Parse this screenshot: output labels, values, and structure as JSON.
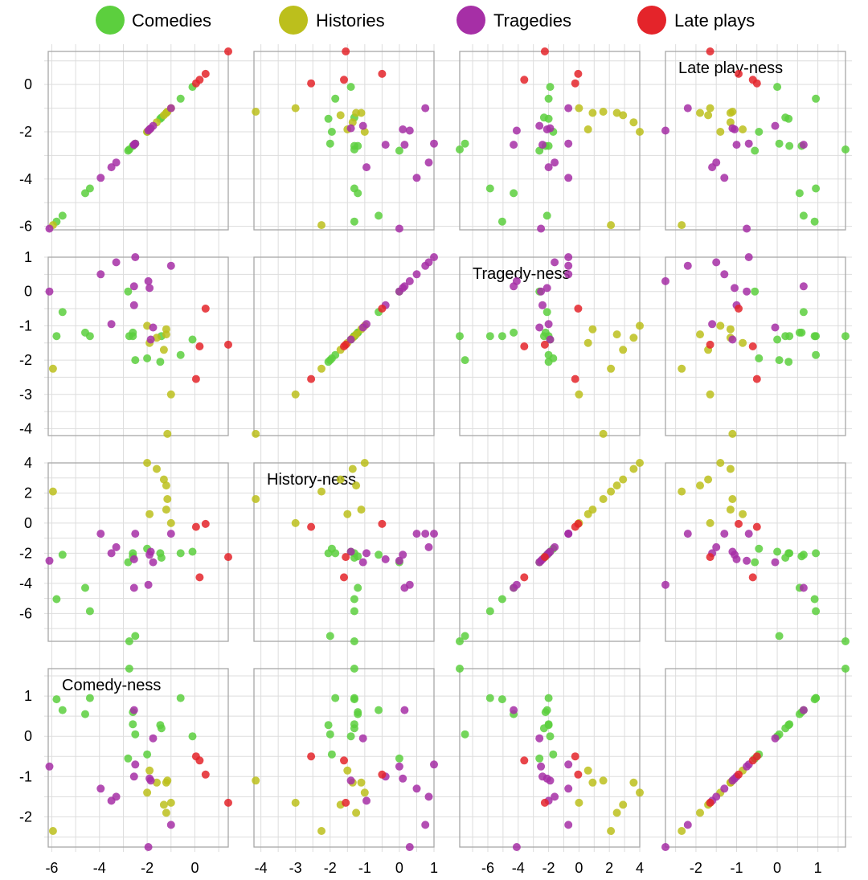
{
  "colors": {
    "Comedies": "#5ccf3e",
    "Histories": "#bcbf1c",
    "Tragedies": "#a62fa6",
    "Late plays": "#e4242a"
  },
  "chart_data": {
    "type": "scatter",
    "title": "",
    "legend": {
      "position": "top",
      "entries": [
        "Comedies",
        "Histories",
        "Tragedies",
        "Late plays"
      ]
    },
    "grid": true,
    "variables": [
      {
        "label": "Comedy-ness",
        "key": "c",
        "range": [
          -2.75,
          1.68
        ],
        "ticks": [
          -2,
          -1,
          0,
          1
        ]
      },
      {
        "label": "History-ness",
        "key": "h",
        "range": [
          -7.85,
          4.0
        ],
        "ticks": [
          -6,
          -4,
          -2,
          0,
          2,
          4
        ]
      },
      {
        "label": "Tragedy-ness",
        "key": "t",
        "range": [
          -4.2,
          1.0
        ],
        "ticks": [
          -4,
          -3,
          -2,
          -1,
          0,
          1
        ]
      },
      {
        "label": "Late play-ness",
        "key": "l",
        "range": [
          -6.15,
          1.4
        ],
        "ticks": [
          -6,
          -4,
          -2,
          0
        ]
      }
    ],
    "layout_order": [
      "l",
      "t",
      "h",
      "c"
    ],
    "points": [
      {
        "g": "Comedies",
        "c": 0.28,
        "h": -2.0,
        "t": -2.05,
        "l": -1.45
      },
      {
        "g": "Comedies",
        "c": 1.68,
        "h": -7.85,
        "t": -1.3,
        "l": -2.75
      },
      {
        "g": "Comedies",
        "c": 0.0,
        "h": -1.9,
        "t": -1.4,
        "l": -0.1
      },
      {
        "g": "Comedies",
        "c": 0.95,
        "h": -5.85,
        "t": -1.3,
        "l": -4.4
      },
      {
        "g": "Comedies",
        "c": 0.92,
        "h": -5.05,
        "t": -1.3,
        "l": -5.8
      },
      {
        "g": "Comedies",
        "c": 0.95,
        "h": -2.0,
        "t": -1.85,
        "l": -0.6
      },
      {
        "g": "Comedies",
        "c": 0.55,
        "h": -4.3,
        "t": -1.2,
        "l": -4.6
      },
      {
        "g": "Comedies",
        "c": 0.65,
        "h": -2.1,
        "t": -0.6,
        "l": -5.55
      },
      {
        "g": "Comedies",
        "c": 0.05,
        "h": -7.5,
        "t": -2.0,
        "l": -2.5
      },
      {
        "g": "Comedies",
        "c": -0.45,
        "h": -1.7,
        "t": -1.95,
        "l": -2.0
      },
      {
        "g": "Comedies",
        "c": -0.55,
        "h": -2.6,
        "t": 0.0,
        "l": -2.8
      },
      {
        "g": "Comedies",
        "c": 0.3,
        "h": -2.0,
        "t": -1.3,
        "l": -2.6
      },
      {
        "g": "Comedies",
        "c": 0.2,
        "h": -2.3,
        "t": -1.3,
        "l": -1.4
      },
      {
        "g": "Comedies",
        "c": 0.6,
        "h": -2.2,
        "t": -1.2,
        "l": -2.6
      },
      {
        "g": "Histories",
        "c": -1.9,
        "h": 2.5,
        "t": -1.25,
        "l": -1.2
      },
      {
        "g": "Histories",
        "c": -1.7,
        "h": 2.9,
        "t": -1.7,
        "l": -1.3
      },
      {
        "g": "Histories",
        "c": -1.4,
        "h": 4.0,
        "t": -1.0,
        "l": -2.0
      },
      {
        "g": "Histories",
        "c": -1.15,
        "h": 3.6,
        "t": -1.35,
        "l": -1.6
      },
      {
        "g": "Histories",
        "c": -1.1,
        "h": 1.6,
        "t": -4.15,
        "l": -1.15
      },
      {
        "g": "Histories",
        "c": -0.85,
        "h": 0.6,
        "t": -1.5,
        "l": -1.9
      },
      {
        "g": "Histories",
        "c": -1.65,
        "h": 0.0,
        "t": -3.0,
        "l": -1.0
      },
      {
        "g": "Histories",
        "c": -2.35,
        "h": 2.1,
        "t": -2.25,
        "l": -5.95
      },
      {
        "g": "Histories",
        "c": -1.15,
        "h": 0.9,
        "t": -1.1,
        "l": -1.2
      },
      {
        "g": "Tragedies",
        "c": -2.75,
        "h": -4.1,
        "t": 0.3,
        "l": -1.95
      },
      {
        "g": "Tragedies",
        "c": -2.2,
        "h": -0.7,
        "t": 0.75,
        "l": -1.0
      },
      {
        "g": "Tragedies",
        "c": -1.5,
        "h": -1.6,
        "t": 0.85,
        "l": -3.3
      },
      {
        "g": "Tragedies",
        "c": -1.3,
        "h": -0.7,
        "t": 0.5,
        "l": -3.95
      },
      {
        "g": "Tragedies",
        "c": -1.05,
        "h": -2.1,
        "t": 0.1,
        "l": -1.9
      },
      {
        "g": "Tragedies",
        "c": -0.75,
        "h": -2.5,
        "t": 0.0,
        "l": -6.1
      },
      {
        "g": "Tragedies",
        "c": 0.65,
        "h": -4.3,
        "t": 0.15,
        "l": -2.55
      },
      {
        "g": "Tragedies",
        "c": -0.7,
        "h": -0.7,
        "t": 1.0,
        "l": -2.5
      },
      {
        "g": "Tragedies",
        "c": -1.6,
        "h": -2.0,
        "t": -0.95,
        "l": -3.5
      },
      {
        "g": "Tragedies",
        "c": -0.05,
        "h": -2.6,
        "t": -1.05,
        "l": -1.75
      },
      {
        "g": "Tragedies",
        "c": -1.0,
        "h": -2.4,
        "t": -0.4,
        "l": -2.55
      },
      {
        "g": "Tragedies",
        "c": -1.1,
        "h": -1.9,
        "t": -1.4,
        "l": -1.85
      },
      {
        "g": "Late plays",
        "c": -1.65,
        "h": -2.25,
        "t": -1.55,
        "l": 1.4
      },
      {
        "g": "Late plays",
        "c": -0.95,
        "h": -0.05,
        "t": -0.5,
        "l": 0.45
      },
      {
        "g": "Late plays",
        "c": -0.6,
        "h": -3.6,
        "t": -1.6,
        "l": 0.2
      },
      {
        "g": "Late plays",
        "c": -0.5,
        "h": -0.25,
        "t": -2.55,
        "l": 0.05
      }
    ]
  }
}
